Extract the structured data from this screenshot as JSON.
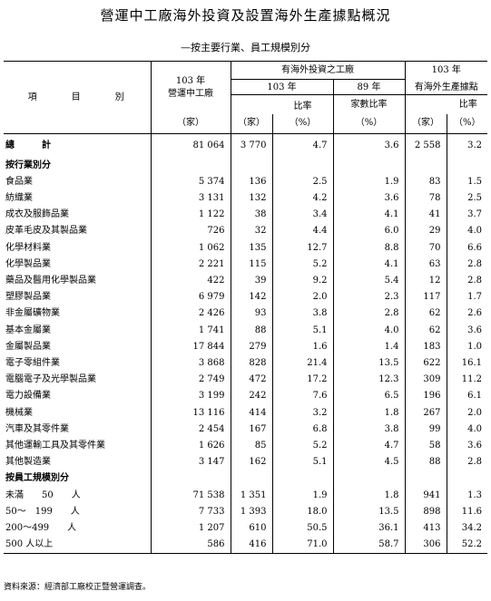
{
  "title": "營運中工廠海外投資及設置海外生產據點概況",
  "subtitle": "—按主要行業、員工規模別分",
  "header": {
    "item": "項　　　目　　　別",
    "year103_ops_a": "103 年",
    "year103_ops_b": "營運中工廠",
    "overseas_group": "有海外投資之工廠",
    "overseas_103": "103 年",
    "ratio": "比率",
    "year89": "89 年",
    "year89_ratio": "家數比率",
    "est_a": "103 年",
    "est_b": "有海外生產據點",
    "unit_jia": "（家）",
    "unit_pct": "（%）"
  },
  "rows": [
    {
      "label": "總　　　計",
      "v": [
        "81 064",
        "3 770",
        "4.7",
        "3.6",
        "2 558",
        "3.2"
      ],
      "kind": "total"
    },
    {
      "label": "按行業別分",
      "v": [
        "",
        "",
        "",
        "",
        "",
        ""
      ],
      "kind": "section"
    },
    {
      "label": "食品業",
      "v": [
        "5 374",
        "136",
        "2.5",
        "1.9",
        "83",
        "1.5"
      ]
    },
    {
      "label": "紡織業",
      "v": [
        "3 131",
        "132",
        "4.2",
        "3.6",
        "78",
        "2.5"
      ]
    },
    {
      "label": "成衣及服飾品業",
      "v": [
        "1 122",
        "38",
        "3.4",
        "4.1",
        "41",
        "3.7"
      ]
    },
    {
      "label": "皮革毛皮及其製品業",
      "v": [
        "726",
        "32",
        "4.4",
        "6.0",
        "29",
        "4.0"
      ]
    },
    {
      "label": "化學材料業",
      "v": [
        "1 062",
        "135",
        "12.7",
        "8.8",
        "70",
        "6.6"
      ]
    },
    {
      "label": "化學製品業",
      "v": [
        "2 221",
        "115",
        "5.2",
        "4.1",
        "63",
        "2.8"
      ]
    },
    {
      "label": "藥品及醫用化學製品業",
      "v": [
        "422",
        "39",
        "9.2",
        "5.4",
        "12",
        "2.8"
      ]
    },
    {
      "label": "塑膠製品業",
      "v": [
        "6 979",
        "142",
        "2.0",
        "2.3",
        "117",
        "1.7"
      ]
    },
    {
      "label": "非金屬礦物業",
      "v": [
        "2 426",
        "93",
        "3.8",
        "2.8",
        "62",
        "2.6"
      ]
    },
    {
      "label": "基本金屬業",
      "v": [
        "1 741",
        "88",
        "5.1",
        "4.0",
        "62",
        "3.6"
      ]
    },
    {
      "label": "金屬製品業",
      "v": [
        "17 844",
        "279",
        "1.6",
        "1.4",
        "183",
        "1.0"
      ]
    },
    {
      "label": "電子零組件業",
      "v": [
        "3 868",
        "828",
        "21.4",
        "13.5",
        "622",
        "16.1"
      ]
    },
    {
      "label": "電腦電子及光學製品業",
      "v": [
        "2 749",
        "472",
        "17.2",
        "12.3",
        "309",
        "11.2"
      ]
    },
    {
      "label": "電力設備業",
      "v": [
        "3 199",
        "242",
        "7.6",
        "6.5",
        "196",
        "6.1"
      ]
    },
    {
      "label": "機械業",
      "v": [
        "13 116",
        "414",
        "3.2",
        "1.8",
        "267",
        "2.0"
      ]
    },
    {
      "label": "汽車及其零件業",
      "v": [
        "2 454",
        "167",
        "6.8",
        "3.8",
        "99",
        "4.0"
      ]
    },
    {
      "label": "其他運輸工具及其零件業",
      "v": [
        "1 626",
        "85",
        "5.2",
        "4.7",
        "58",
        "3.6"
      ]
    },
    {
      "label": "其他製造業",
      "v": [
        "3 147",
        "162",
        "5.1",
        "4.5",
        "88",
        "2.8"
      ]
    },
    {
      "label": "按員工規模別分",
      "v": [
        "",
        "",
        "",
        "",
        "",
        ""
      ],
      "kind": "section"
    },
    {
      "label": "未滿　　50　　人",
      "v": [
        "71 538",
        "1 351",
        "1.9",
        "1.8",
        "941",
        "1.3"
      ]
    },
    {
      "label": "50～　199　　人",
      "v": [
        "7 733",
        "1 393",
        "18.0",
        "13.5",
        "898",
        "11.6"
      ]
    },
    {
      "label": "200～499　　人",
      "v": [
        "1 207",
        "610",
        "50.5",
        "36.1",
        "413",
        "34.2"
      ]
    },
    {
      "label": "500 人以上",
      "v": [
        "586",
        "416",
        "71.0",
        "58.7",
        "306",
        "52.2"
      ]
    }
  ],
  "note": "資料來源：經濟部工廠校正暨營運調查。"
}
